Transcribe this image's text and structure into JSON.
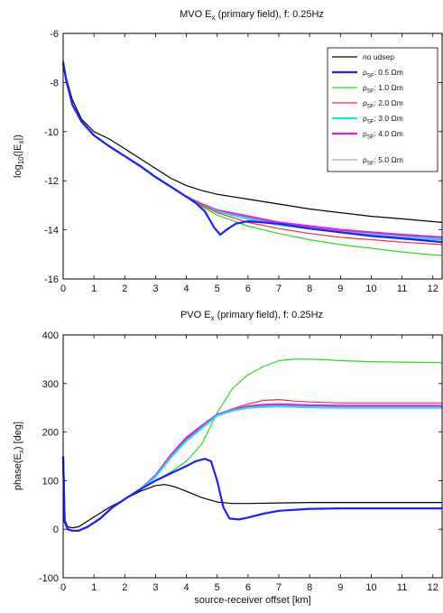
{
  "chart_data": [
    {
      "type": "line",
      "title": "MVO E_x (primary field), f: 0.25Hz",
      "title_parts": {
        "pre": "MVO E",
        "sub": "x",
        "post": " (primary field), f: 0.25Hz"
      },
      "xlabel": "",
      "ylabel": "log10(|Ex|)",
      "ylabel_parts": {
        "pre": "log",
        "sub1": "10",
        "mid": "(|E",
        "sub2": "x",
        "post": "|)"
      },
      "xlim": [
        0,
        12.3
      ],
      "ylim": [
        -16,
        -6
      ],
      "xticks": [
        "0",
        "1",
        "2",
        "3",
        "4",
        "5",
        "6",
        "7",
        "8",
        "9",
        "10",
        "11",
        "12"
      ],
      "yticks": [
        "-6",
        "-8",
        "-10",
        "-12",
        "-14",
        "-16"
      ],
      "grid": false,
      "legend_position": "top-right",
      "legend": [
        {
          "text": "no udsep",
          "color": "#000000"
        },
        {
          "pre": "ρ",
          "sub": "SF",
          "post": ": 0.5 Ωm",
          "color": "#1f1fff"
        },
        {
          "pre": "ρ",
          "sub": "SF",
          "post": ": 1.0 Ωm",
          "color": "#22dd22"
        },
        {
          "pre": "ρ",
          "sub": "SF",
          "post": ": 2.0 Ωm",
          "color": "#ff2a2a"
        },
        {
          "pre": "ρ",
          "sub": "SF",
          "post": ": 3.0 Ωm",
          "color": "#22ddee"
        },
        {
          "pre": "ρ",
          "sub": "SF",
          "post": ": 4.0 Ωm",
          "color": "#e020e0"
        },
        {
          "pre": "ρ",
          "sub": "SF",
          "post": ": 5.0 Ωm",
          "color": "#aaaaaa"
        }
      ],
      "series": [
        {
          "color": "#000000",
          "x": [
            0,
            0.1,
            0.3,
            0.6,
            1,
            1.5,
            2,
            2.5,
            3,
            3.5,
            4,
            4.5,
            5,
            6,
            7,
            8,
            9,
            10,
            11,
            12.3
          ],
          "y": [
            -7.1,
            -7.8,
            -8.7,
            -9.5,
            -10,
            -10.3,
            -10.7,
            -11.1,
            -11.5,
            -11.9,
            -12.2,
            -12.4,
            -12.55,
            -12.75,
            -12.95,
            -13.15,
            -13.3,
            -13.45,
            -13.55,
            -13.7
          ]
        },
        {
          "color": "#aaaaaa",
          "x": [
            0,
            0.1,
            0.3,
            0.6,
            1,
            1.5,
            2,
            2.5,
            3,
            3.5,
            4,
            4.5,
            5,
            6,
            7,
            8,
            9,
            10,
            11,
            12.3
          ],
          "y": [
            -7.2,
            -7.9,
            -8.9,
            -9.6,
            -10.15,
            -10.6,
            -11,
            -11.4,
            -11.85,
            -12.25,
            -12.65,
            -12.95,
            -13.2,
            -13.5,
            -13.75,
            -13.9,
            -14.05,
            -14.15,
            -14.25,
            -14.35
          ]
        },
        {
          "color": "#e020e0",
          "x": [
            0,
            0.1,
            0.3,
            0.6,
            1,
            1.5,
            2,
            2.5,
            3,
            3.5,
            4,
            4.5,
            5,
            6,
            7,
            8,
            9,
            10,
            11,
            12.3
          ],
          "y": [
            -7.2,
            -7.9,
            -8.9,
            -9.6,
            -10.15,
            -10.6,
            -11,
            -11.4,
            -11.85,
            -12.25,
            -12.65,
            -12.95,
            -13.2,
            -13.45,
            -13.7,
            -13.85,
            -14,
            -14.1,
            -14.2,
            -14.3
          ]
        },
        {
          "color": "#22ddee",
          "x": [
            0,
            0.1,
            0.3,
            0.6,
            1,
            1.5,
            2,
            2.5,
            3,
            3.5,
            4,
            4.5,
            5,
            6,
            7,
            8,
            9,
            10,
            11,
            12.3
          ],
          "y": [
            -7.2,
            -7.9,
            -8.9,
            -9.6,
            -10.15,
            -10.6,
            -11,
            -11.4,
            -11.85,
            -12.25,
            -12.65,
            -13,
            -13.25,
            -13.55,
            -13.8,
            -13.95,
            -14.1,
            -14.2,
            -14.3,
            -14.4
          ]
        },
        {
          "color": "#ff2a2a",
          "x": [
            0,
            0.1,
            0.3,
            0.6,
            1,
            1.5,
            2,
            2.5,
            3,
            3.5,
            4,
            4.5,
            5,
            6,
            7,
            8,
            9,
            10,
            11,
            12.3
          ],
          "y": [
            -7.2,
            -7.9,
            -8.9,
            -9.6,
            -10.15,
            -10.6,
            -11,
            -11.4,
            -11.85,
            -12.25,
            -12.65,
            -13,
            -13.3,
            -13.7,
            -13.95,
            -14.15,
            -14.3,
            -14.4,
            -14.5,
            -14.6
          ]
        },
        {
          "color": "#22dd22",
          "x": [
            0,
            0.1,
            0.3,
            0.6,
            1,
            1.5,
            2,
            2.5,
            3,
            3.5,
            4,
            4.5,
            5,
            6,
            7,
            8,
            9,
            10,
            11,
            12.3
          ],
          "y": [
            -7.2,
            -7.9,
            -8.9,
            -9.6,
            -10.15,
            -10.6,
            -11,
            -11.4,
            -11.85,
            -12.25,
            -12.65,
            -13.05,
            -13.4,
            -13.85,
            -14.15,
            -14.4,
            -14.6,
            -14.75,
            -14.9,
            -15.05
          ]
        },
        {
          "color": "#1f1fff",
          "x": [
            0,
            0.1,
            0.3,
            0.6,
            1,
            1.5,
            2,
            2.5,
            3,
            3.5,
            4,
            4.3,
            4.6,
            4.9,
            5.1,
            5.3,
            5.6,
            6,
            6.5,
            7,
            8,
            9,
            10,
            11,
            12.3
          ],
          "y": [
            -7.2,
            -7.9,
            -8.9,
            -9.6,
            -10.15,
            -10.6,
            -11,
            -11.4,
            -11.85,
            -12.25,
            -12.65,
            -12.9,
            -13.25,
            -13.9,
            -14.2,
            -14,
            -13.75,
            -13.65,
            -13.7,
            -13.75,
            -13.95,
            -14.1,
            -14.25,
            -14.35,
            -14.5
          ]
        }
      ]
    },
    {
      "type": "line",
      "title": "PVO E_x (primary field), f: 0.25Hz",
      "title_parts": {
        "pre": "PVO E",
        "sub": "x",
        "post": " (primary field), f: 0.25Hz"
      },
      "xlabel": "source-receiver offset [km]",
      "ylabel": "phase(Ex) [deg]",
      "ylabel_parts": {
        "pre": "phase(E",
        "sub": "x",
        "post": ") [deg]"
      },
      "xlim": [
        0,
        12.3
      ],
      "ylim": [
        -100,
        400
      ],
      "xticks": [
        "0",
        "1",
        "2",
        "3",
        "4",
        "5",
        "6",
        "7",
        "8",
        "9",
        "10",
        "11",
        "12"
      ],
      "yticks": [
        "400",
        "300",
        "200",
        "100",
        "0",
        "-100"
      ],
      "grid": false,
      "series": [
        {
          "color": "#000000",
          "x": [
            0,
            0.05,
            0.15,
            0.3,
            0.5,
            1,
            1.5,
            2,
            2.5,
            3,
            3.3,
            3.6,
            4,
            4.5,
            5,
            5.5,
            6,
            7,
            8,
            9,
            10,
            11,
            12.3
          ],
          "y": [
            150,
            20,
            5,
            3,
            5,
            25,
            45,
            62,
            78,
            90,
            92,
            88,
            78,
            65,
            56,
            53,
            53,
            54,
            55,
            55,
            55,
            55,
            55
          ]
        },
        {
          "color": "#22dd22",
          "x": [
            0,
            0.05,
            0.15,
            0.3,
            0.5,
            0.8,
            1.2,
            1.6,
            2,
            2.5,
            3,
            3.5,
            4,
            4.5,
            5,
            5.5,
            6,
            6.5,
            7,
            7.5,
            8,
            8.5,
            9,
            10,
            11,
            12.3
          ],
          "y": [
            150,
            15,
            0,
            -3,
            -3,
            5,
            22,
            45,
            62,
            82,
            100,
            118,
            140,
            175,
            240,
            290,
            318,
            335,
            347,
            350,
            350,
            349,
            347,
            345,
            344,
            343
          ]
        },
        {
          "color": "#ff2a2a",
          "x": [
            0,
            0.05,
            0.15,
            0.3,
            0.5,
            0.8,
            1.2,
            1.6,
            2,
            2.5,
            3,
            3.5,
            4,
            4.5,
            5,
            5.5,
            6,
            6.5,
            7,
            7.5,
            8,
            9,
            10,
            11,
            12.3
          ],
          "y": [
            150,
            15,
            0,
            -3,
            -3,
            5,
            22,
            45,
            62,
            82,
            110,
            150,
            185,
            210,
            235,
            248,
            258,
            265,
            267,
            264,
            262,
            260,
            260,
            260,
            260
          ]
        },
        {
          "color": "#aaaaaa",
          "x": [
            0,
            0.05,
            0.15,
            0.3,
            0.5,
            0.8,
            1.2,
            1.6,
            2,
            2.5,
            3,
            3.5,
            4,
            4.5,
            5,
            5.5,
            6,
            6.5,
            7,
            7.5,
            8,
            9,
            10,
            11,
            12.3
          ],
          "y": [
            150,
            15,
            0,
            -3,
            -3,
            5,
            22,
            45,
            62,
            82,
            112,
            155,
            190,
            215,
            237,
            247,
            254,
            257,
            258,
            257,
            256,
            255,
            255,
            255,
            255
          ]
        },
        {
          "color": "#e020e0",
          "x": [
            0,
            0.05,
            0.15,
            0.3,
            0.5,
            0.8,
            1.2,
            1.6,
            2,
            2.5,
            3,
            3.5,
            4,
            4.5,
            5,
            5.5,
            6,
            6.5,
            7,
            7.5,
            8,
            9,
            10,
            11,
            12.3
          ],
          "y": [
            150,
            15,
            0,
            -3,
            -3,
            5,
            22,
            45,
            62,
            82,
            111,
            152,
            188,
            212,
            236,
            246,
            253,
            256,
            257,
            256,
            255,
            254,
            254,
            254,
            254
          ]
        },
        {
          "color": "#22ddee",
          "x": [
            0,
            0.05,
            0.15,
            0.3,
            0.5,
            0.8,
            1.2,
            1.6,
            2,
            2.5,
            3,
            3.5,
            4,
            4.5,
            5,
            5.5,
            6,
            6.5,
            7,
            7.5,
            8,
            9,
            10,
            11,
            12.3
          ],
          "y": [
            150,
            15,
            0,
            -3,
            -3,
            5,
            22,
            45,
            62,
            82,
            108,
            148,
            182,
            208,
            234,
            244,
            250,
            252,
            253,
            252,
            251,
            250,
            250,
            250,
            250
          ]
        },
        {
          "color": "#1f1fff",
          "x": [
            0,
            0.05,
            0.15,
            0.3,
            0.5,
            0.8,
            1.2,
            1.6,
            2,
            2.5,
            3,
            3.5,
            4,
            4.3,
            4.6,
            4.8,
            5,
            5.2,
            5.4,
            5.7,
            6,
            6.5,
            7,
            8,
            9,
            10,
            11,
            12.3
          ],
          "y": [
            150,
            15,
            0,
            -3,
            -3,
            5,
            22,
            45,
            62,
            82,
            100,
            115,
            130,
            140,
            145,
            140,
            100,
            45,
            22,
            20,
            24,
            32,
            38,
            42,
            43,
            43,
            43,
            43
          ]
        }
      ]
    }
  ]
}
